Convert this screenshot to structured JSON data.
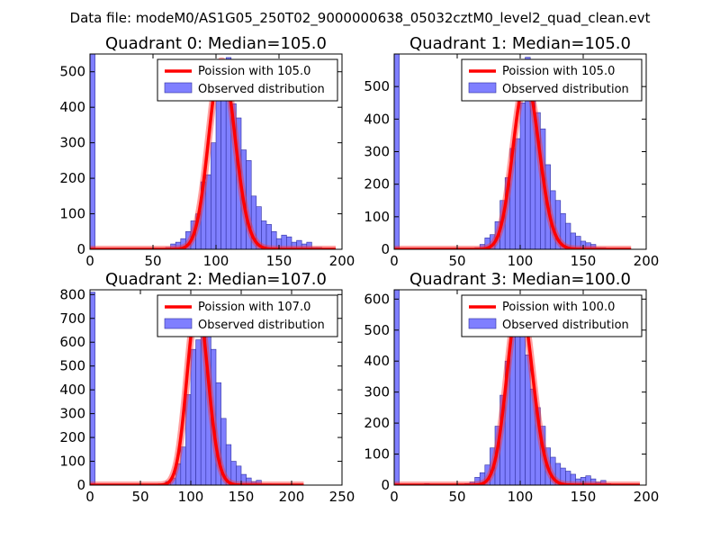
{
  "title": "Data file: modeM0/AS1G05_250T02_9000000638_05032cztM0_level2_quad_clean.evt",
  "chart_data": [
    {
      "type": "bar",
      "title": "Quadrant 0: Median=105.0",
      "xlim": [
        0,
        200
      ],
      "ylim": [
        0,
        550
      ],
      "xticks": [
        0,
        50,
        100,
        150,
        200
      ],
      "yticks": [
        0,
        100,
        200,
        300,
        400,
        500
      ],
      "bin_width": 4,
      "series": [
        {
          "name": "Poission with 105.0",
          "kind": "line",
          "mu": 105.0,
          "scale": 530,
          "x_range": [
            0,
            195
          ]
        },
        {
          "name": "Observed distribution",
          "kind": "hist",
          "bins": [
            [
              0,
              550
            ],
            [
              60,
              5
            ],
            [
              64,
              15
            ],
            [
              68,
              20
            ],
            [
              72,
              30
            ],
            [
              76,
              50
            ],
            [
              80,
              80
            ],
            [
              84,
              100
            ],
            [
              88,
              190
            ],
            [
              92,
              210
            ],
            [
              96,
              300
            ],
            [
              100,
              430
            ],
            [
              104,
              530
            ],
            [
              108,
              540
            ],
            [
              112,
              410
            ],
            [
              116,
              370
            ],
            [
              120,
              280
            ],
            [
              124,
              250
            ],
            [
              128,
              150
            ],
            [
              132,
              120
            ],
            [
              136,
              80
            ],
            [
              140,
              70
            ],
            [
              144,
              50
            ],
            [
              148,
              30
            ],
            [
              152,
              40
            ],
            [
              156,
              35
            ],
            [
              160,
              20
            ],
            [
              164,
              25
            ],
            [
              168,
              15
            ],
            [
              172,
              20
            ],
            [
              176,
              5
            ],
            [
              180,
              5
            ]
          ]
        }
      ],
      "legend": {
        "position": "top-right",
        "entries": [
          "Poission with 105.0",
          "Observed distribution"
        ]
      }
    },
    {
      "type": "bar",
      "title": "Quadrant 1: Median=105.0",
      "xlim": [
        0,
        200
      ],
      "ylim": [
        0,
        600
      ],
      "xticks": [
        0,
        50,
        100,
        150,
        200
      ],
      "yticks": [
        0,
        100,
        200,
        300,
        400,
        500
      ],
      "bin_width": 4,
      "series": [
        {
          "name": "Poission with 105.0",
          "kind": "line",
          "mu": 105.0,
          "scale": 520,
          "x_range": [
            0,
            188
          ]
        },
        {
          "name": "Observed distribution",
          "kind": "hist",
          "bins": [
            [
              0,
              600
            ],
            [
              64,
              5
            ],
            [
              68,
              15
            ],
            [
              72,
              35
            ],
            [
              76,
              45
            ],
            [
              80,
              85
            ],
            [
              84,
              150
            ],
            [
              88,
              220
            ],
            [
              92,
              310
            ],
            [
              96,
              340
            ],
            [
              100,
              450
            ],
            [
              104,
              590
            ],
            [
              108,
              560
            ],
            [
              112,
              420
            ],
            [
              116,
              370
            ],
            [
              120,
              260
            ],
            [
              124,
              180
            ],
            [
              128,
              150
            ],
            [
              132,
              110
            ],
            [
              136,
              80
            ],
            [
              140,
              50
            ],
            [
              144,
              40
            ],
            [
              148,
              25
            ],
            [
              152,
              20
            ],
            [
              156,
              15
            ],
            [
              160,
              5
            ],
            [
              164,
              5
            ]
          ]
        }
      ],
      "legend": {
        "position": "top-right",
        "entries": [
          "Poission with 105.0",
          "Observed distribution"
        ]
      }
    },
    {
      "type": "bar",
      "title": "Quadrant 2: Median=107.0",
      "xlim": [
        0,
        250
      ],
      "ylim": [
        0,
        820
      ],
      "xticks": [
        0,
        50,
        100,
        150,
        200,
        250
      ],
      "yticks": [
        0,
        100,
        200,
        300,
        400,
        500,
        600,
        700,
        800
      ],
      "bin_width": 5,
      "series": [
        {
          "name": "Poission with 107.0",
          "kind": "line",
          "mu": 107.0,
          "scale": 760,
          "x_range": [
            0,
            212
          ]
        },
        {
          "name": "Observed distribution",
          "kind": "hist",
          "bins": [
            [
              0,
              810
            ],
            [
              70,
              5
            ],
            [
              75,
              15
            ],
            [
              80,
              30
            ],
            [
              85,
              90
            ],
            [
              90,
              160
            ],
            [
              95,
              380
            ],
            [
              100,
              570
            ],
            [
              105,
              610
            ],
            [
              110,
              780
            ],
            [
              115,
              730
            ],
            [
              120,
              570
            ],
            [
              125,
              430
            ],
            [
              130,
              280
            ],
            [
              135,
              170
            ],
            [
              140,
              100
            ],
            [
              145,
              80
            ],
            [
              150,
              45
            ],
            [
              155,
              30
            ],
            [
              160,
              15
            ],
            [
              165,
              20
            ],
            [
              170,
              5
            ],
            [
              175,
              5
            ]
          ]
        }
      ],
      "legend": {
        "position": "top-right",
        "entries": [
          "Poission with 107.0",
          "Observed distribution"
        ]
      }
    },
    {
      "type": "bar",
      "title": "Quadrant 3: Median=100.0",
      "xlim": [
        0,
        200
      ],
      "ylim": [
        0,
        630
      ],
      "xticks": [
        0,
        50,
        100,
        150,
        200
      ],
      "yticks": [
        0,
        100,
        200,
        300,
        400,
        500,
        600
      ],
      "bin_width": 4,
      "series": [
        {
          "name": "Poission with 100.0",
          "kind": "line",
          "mu": 100.0,
          "scale": 600,
          "x_range": [
            0,
            195
          ]
        },
        {
          "name": "Observed distribution",
          "kind": "hist",
          "bins": [
            [
              0,
              630
            ],
            [
              24,
              5
            ],
            [
              56,
              5
            ],
            [
              60,
              10
            ],
            [
              64,
              25
            ],
            [
              68,
              40
            ],
            [
              72,
              65
            ],
            [
              76,
              120
            ],
            [
              80,
              190
            ],
            [
              84,
              290
            ],
            [
              88,
              400
            ],
            [
              92,
              520
            ],
            [
              96,
              590
            ],
            [
              100,
              560
            ],
            [
              104,
              420
            ],
            [
              108,
              310
            ],
            [
              112,
              250
            ],
            [
              116,
              190
            ],
            [
              120,
              120
            ],
            [
              124,
              90
            ],
            [
              128,
              70
            ],
            [
              132,
              55
            ],
            [
              136,
              45
            ],
            [
              140,
              35
            ],
            [
              144,
              20
            ],
            [
              148,
              25
            ],
            [
              152,
              30
            ],
            [
              156,
              20
            ],
            [
              160,
              10
            ],
            [
              164,
              15
            ],
            [
              168,
              5
            ]
          ]
        }
      ],
      "legend": {
        "position": "top-right",
        "entries": [
          "Poission with 100.0",
          "Observed distribution"
        ]
      }
    }
  ]
}
